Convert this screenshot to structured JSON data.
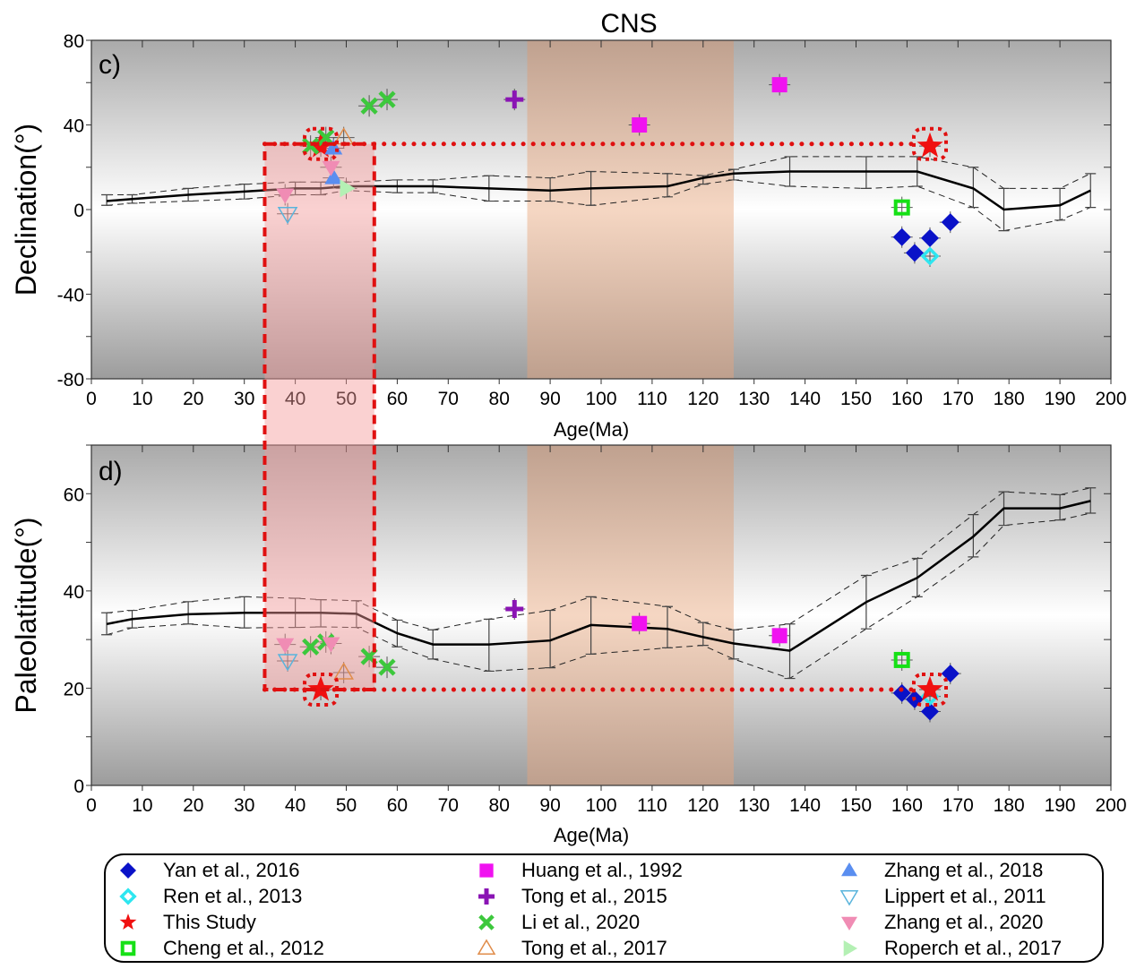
{
  "chart_data": [
    {
      "type": "scatter",
      "panel_label": "c)",
      "title": "CNS",
      "xlabel": "Age(Ma)",
      "ylabel": "Declination(°)",
      "xlim": [
        0,
        200
      ],
      "ylim": [
        -80,
        80
      ],
      "xticks": [
        0,
        10,
        20,
        30,
        40,
        50,
        60,
        70,
        80,
        90,
        100,
        110,
        120,
        130,
        140,
        150,
        160,
        170,
        180,
        190,
        200
      ],
      "yticks": [
        -80,
        -40,
        0,
        40,
        80
      ],
      "shaded_regions": [
        {
          "name": "CNS",
          "x": [
            85.5,
            126
          ],
          "color": "#c9a08a"
        },
        {
          "name": "highlight",
          "x": [
            34,
            55.5
          ],
          "y": [
            -80,
            31
          ],
          "color": "#f6b2b2"
        }
      ],
      "reference_line": {
        "from": [
          34,
          31
        ],
        "to": [
          164,
          31
        ],
        "style": "dotted",
        "color": "#e01010"
      },
      "apwp": {
        "age": [
          3,
          8,
          19,
          30,
          40,
          45,
          50,
          60,
          67,
          78,
          90,
          98,
          113,
          120,
          126,
          137,
          152,
          162,
          173,
          179,
          190,
          196
        ],
        "mean": [
          4,
          5,
          7,
          8.5,
          10,
          10,
          11,
          11,
          11,
          10,
          9,
          10,
          11,
          15,
          17,
          18,
          18,
          18,
          10,
          0,
          2,
          9
        ],
        "upper": [
          7,
          7,
          10,
          12,
          13,
          13,
          13,
          14,
          14,
          16,
          15,
          18,
          17,
          16,
          19,
          25,
          25,
          25,
          20,
          10,
          10,
          17
        ],
        "lower": [
          2,
          3,
          4,
          5,
          7,
          7,
          9,
          8,
          8,
          4,
          4,
          2,
          6,
          12,
          14,
          11,
          10,
          11,
          1,
          -10,
          -5,
          1
        ]
      },
      "series": [
        {
          "name": "Yan et al., 2016",
          "points": [
            [
              159,
              -13
            ],
            [
              161.5,
              -20.5
            ],
            [
              164.5,
              -13.5
            ],
            [
              168.5,
              -6
            ]
          ]
        },
        {
          "name": "Ren et al., 2013",
          "points": [
            [
              164.5,
              -22
            ]
          ]
        },
        {
          "name": "This Study",
          "points": [
            [
              45,
              30
            ],
            [
              164.5,
              30
            ]
          ]
        },
        {
          "name": "Cheng et al., 2012",
          "points": [
            [
              159,
              1
            ]
          ]
        },
        {
          "name": "Huang et al., 1992",
          "points": [
            [
              107.5,
              40
            ],
            [
              135,
              59
            ]
          ]
        },
        {
          "name": "Tong et al., 2015",
          "points": [
            [
              83,
              52
            ]
          ]
        },
        {
          "name": "Li et al., 2020",
          "points": [
            [
              43,
              30
            ],
            [
              46,
              34
            ],
            [
              54.5,
              49
            ],
            [
              58,
              52
            ]
          ]
        },
        {
          "name": "Tong et al., 2017",
          "points": [
            [
              49.5,
              34
            ]
          ]
        },
        {
          "name": "Zhang et al., 2018",
          "points": [
            [
              47.5,
              29
            ],
            [
              47.5,
              15
            ]
          ]
        },
        {
          "name": "Lippert et al., 2011",
          "points": [
            [
              38.5,
              -2
            ]
          ]
        },
        {
          "name": "Zhang et al., 2020",
          "points": [
            [
              38,
              7
            ],
            [
              47,
              20
            ]
          ]
        },
        {
          "name": "Roperch et al., 2017",
          "points": [
            [
              50,
              10
            ]
          ]
        }
      ]
    },
    {
      "type": "scatter",
      "panel_label": "d)",
      "xlabel": "Age(Ma)",
      "ylabel": "Paleolatitude(°)",
      "xlim": [
        0,
        200
      ],
      "ylim": [
        0,
        70
      ],
      "xticks": [
        0,
        10,
        20,
        30,
        40,
        50,
        60,
        70,
        80,
        90,
        100,
        110,
        120,
        130,
        140,
        150,
        160,
        170,
        180,
        190,
        200
      ],
      "yticks": [
        0,
        20,
        40,
        60
      ],
      "shaded_regions": [
        {
          "name": "CNS",
          "x": [
            85.5,
            126
          ],
          "color": "#c9a08a"
        },
        {
          "name": "highlight",
          "x": [
            34,
            55.5
          ],
          "y": [
            19.7,
            70
          ],
          "color": "#f6b2b2"
        }
      ],
      "reference_line": {
        "from": [
          34,
          19.7
        ],
        "to": [
          164,
          19.7
        ],
        "style": "dotted",
        "color": "#e01010"
      },
      "apwp": {
        "age": [
          3,
          8,
          19,
          30,
          40,
          45,
          52,
          60,
          67,
          78,
          90,
          98,
          113,
          120,
          126,
          137,
          152,
          162,
          173,
          179,
          190,
          196
        ],
        "mean": [
          33.2,
          34.2,
          35.2,
          35.5,
          35.5,
          35.5,
          35.3,
          31.3,
          29,
          29,
          29.8,
          33,
          32.2,
          30.5,
          29.2,
          27.7,
          37.7,
          42.7,
          51.2,
          57,
          57,
          58.5
        ],
        "upper": [
          35.5,
          36,
          37.8,
          38.8,
          38.5,
          38.2,
          38,
          34,
          32,
          34.2,
          36,
          38.8,
          36.8,
          33.5,
          32,
          33.2,
          43.2,
          46.7,
          55.7,
          60.4,
          59.8,
          61.2
        ],
        "lower": [
          31,
          32.4,
          33.2,
          32.4,
          32.5,
          32.6,
          32.5,
          28.5,
          26,
          23.5,
          24.2,
          27,
          28.3,
          28.8,
          26,
          22,
          32.2,
          38.8,
          47,
          53.5,
          54.6,
          56
        ]
      },
      "series": [
        {
          "name": "Yan et al., 2016",
          "points": [
            [
              159,
              19
            ],
            [
              161.5,
              17.7
            ],
            [
              164.5,
              15.2
            ],
            [
              168.5,
              23
            ]
          ]
        },
        {
          "name": "Ren et al., 2013",
          "points": [
            [
              164.5,
              18.3
            ]
          ]
        },
        {
          "name": "This Study",
          "points": [
            [
              45,
              19.7
            ],
            [
              164.5,
              19.7
            ]
          ]
        },
        {
          "name": "Cheng et al., 2012",
          "points": [
            [
              159,
              25.8
            ]
          ]
        },
        {
          "name": "Huang et al., 1992",
          "points": [
            [
              107.5,
              33.3
            ],
            [
              135,
              30.8
            ]
          ]
        },
        {
          "name": "Tong et al., 2015",
          "points": [
            [
              83,
              36.3
            ]
          ]
        },
        {
          "name": "Li et al., 2020",
          "points": [
            [
              43,
              28.5
            ],
            [
              46,
              29.5
            ],
            [
              54.5,
              26.5
            ],
            [
              58,
              24.3
            ]
          ]
        },
        {
          "name": "Tong et al., 2017",
          "points": [
            [
              49.5,
              23.2
            ]
          ]
        },
        {
          "name": "Lippert et al., 2011",
          "points": [
            [
              38.5,
              25.6
            ]
          ]
        },
        {
          "name": "Zhang et al., 2020",
          "points": [
            [
              38,
              29
            ],
            [
              47,
              29.2
            ]
          ]
        }
      ]
    }
  ],
  "legend": {
    "items": [
      {
        "label": "Yan et al., 2016",
        "symbol": "diamond-filled",
        "color": "#0a12c8"
      },
      {
        "label": "Ren et al., 2013",
        "symbol": "diamond-open",
        "color": "#2ee6f0"
      },
      {
        "label": "This Study",
        "symbol": "star",
        "color": "#f01010"
      },
      {
        "label": "Cheng et al., 2012",
        "symbol": "square-open",
        "color": "#16e016"
      },
      {
        "label": "Huang et al., 1992",
        "symbol": "square-filled",
        "color": "#f012f0"
      },
      {
        "label": "Tong et al., 2015",
        "symbol": "plus",
        "color": "#8a14b4"
      },
      {
        "label": "Li et al., 2020",
        "symbol": "cross",
        "color": "#3cc83c"
      },
      {
        "label": "Tong et al., 2017",
        "symbol": "triangle-up-open",
        "color": "#e08c4a"
      },
      {
        "label": "Zhang et al., 2018",
        "symbol": "triangle-up-filled",
        "color": "#5a8ef0"
      },
      {
        "label": "Lippert et al., 2011",
        "symbol": "triangle-down-open",
        "color": "#5ab4dc"
      },
      {
        "label": "Zhang et al., 2020",
        "symbol": "triangle-down-filled",
        "color": "#f08cb4"
      },
      {
        "label": "Roperch et al., 2017",
        "symbol": "triangle-right-filled",
        "color": "#b4f0b4"
      }
    ]
  }
}
